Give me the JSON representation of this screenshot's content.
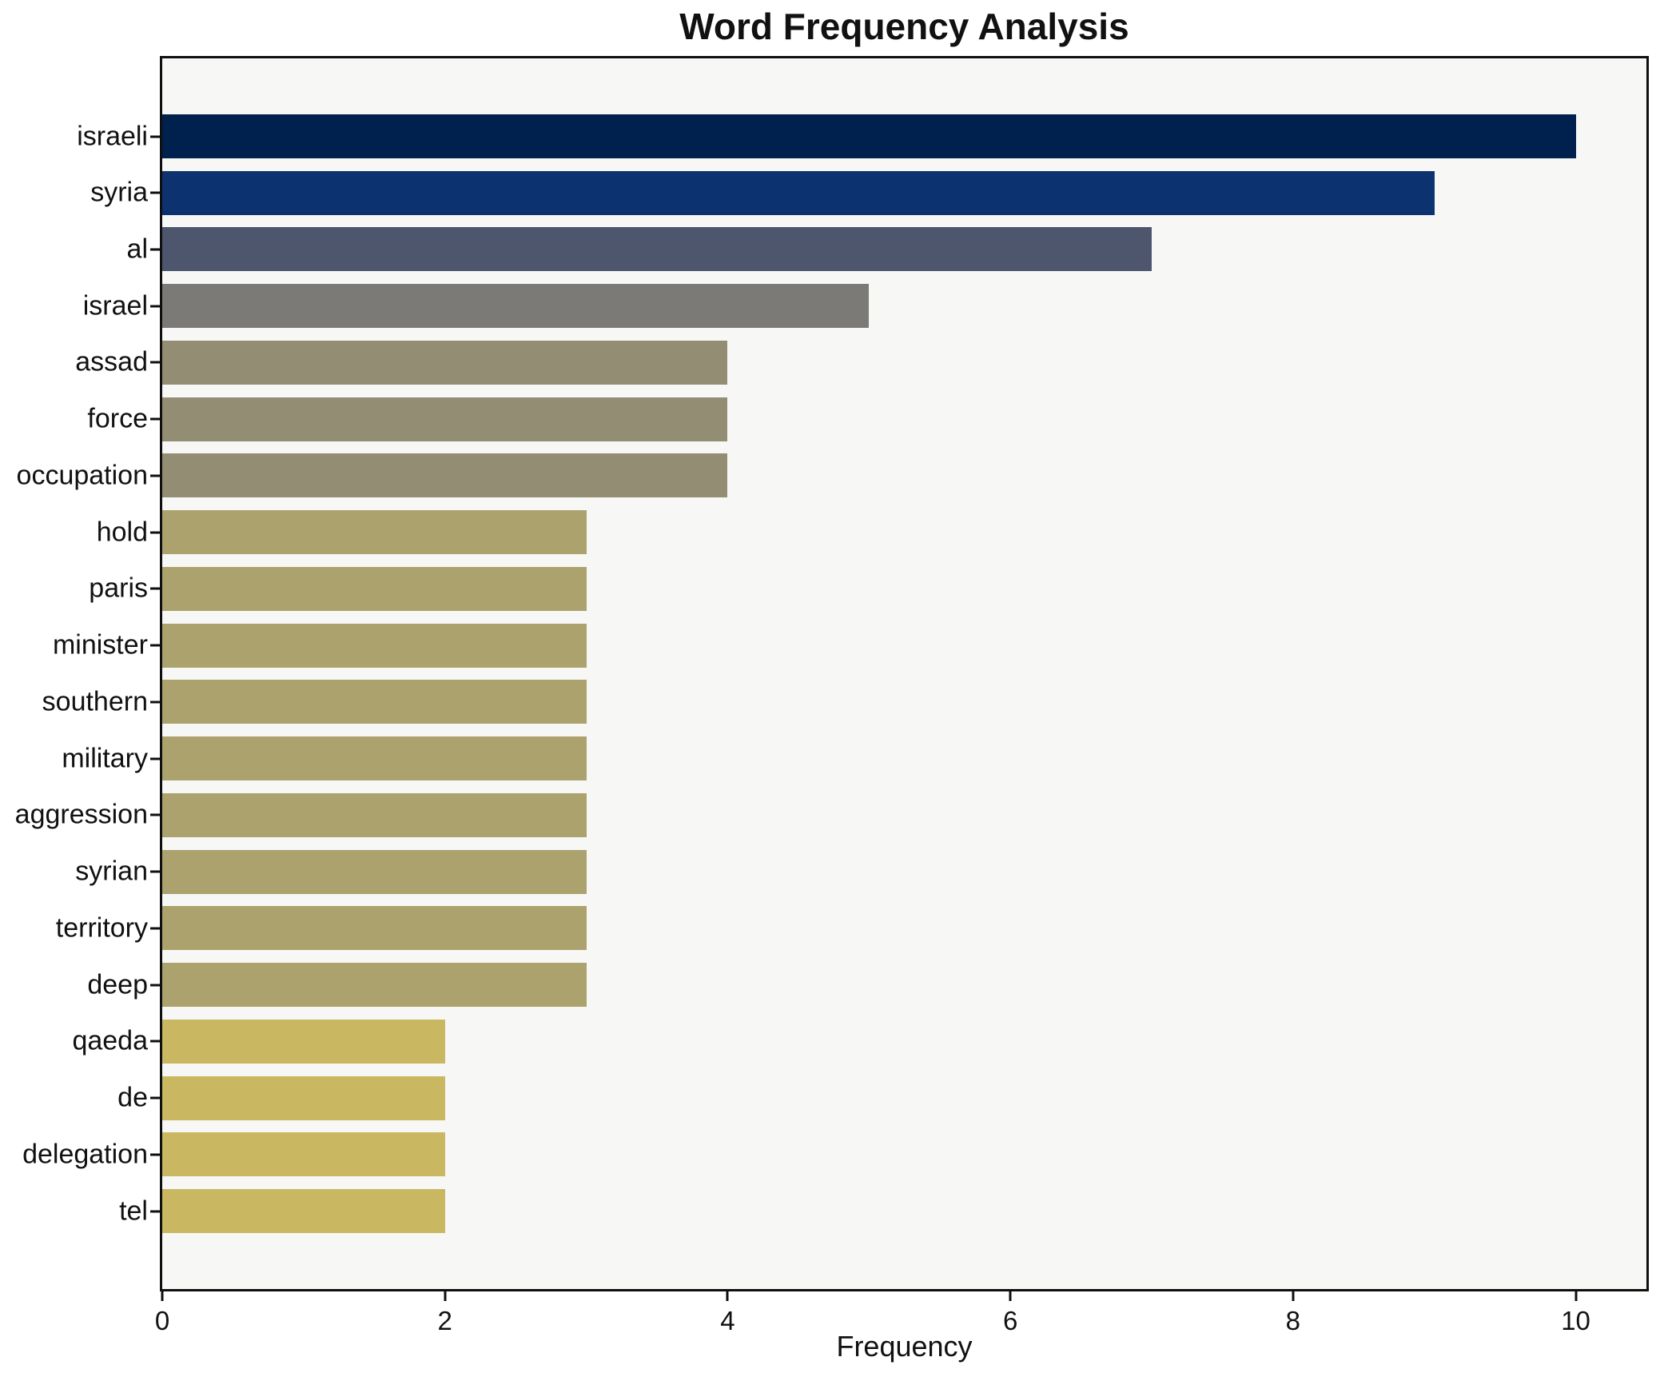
{
  "chart_data": {
    "type": "bar",
    "orientation": "horizontal",
    "title": "Word Frequency Analysis",
    "xlabel": "Frequency",
    "ylabel": "",
    "categories": [
      "israeli",
      "syria",
      "al",
      "israel",
      "assad",
      "force",
      "occupation",
      "hold",
      "paris",
      "minister",
      "southern",
      "military",
      "aggression",
      "syrian",
      "territory",
      "deep",
      "qaeda",
      "de",
      "delegation",
      "tel"
    ],
    "values": [
      10,
      9,
      7,
      5,
      4,
      4,
      4,
      3,
      3,
      3,
      3,
      3,
      3,
      3,
      3,
      3,
      2,
      2,
      2,
      2
    ],
    "bar_colors": [
      "#00214d",
      "#0d3270",
      "#4d566c",
      "#7b7a76",
      "#938d74",
      "#938d74",
      "#938d74",
      "#aca26e",
      "#aca26e",
      "#aca26e",
      "#aca26e",
      "#aca26e",
      "#aca26e",
      "#aca26e",
      "#aca26e",
      "#aca26e",
      "#c9b762",
      "#c9b762",
      "#c9b762",
      "#c9b762"
    ],
    "xlim": [
      0,
      10.5
    ],
    "xticks": [
      0,
      2,
      4,
      6,
      8,
      10
    ],
    "grid": false,
    "legend_position": "none",
    "plot_background": "#f7f7f6",
    "figure_background": "#ffffff",
    "spine_color": "#0f0f0f"
  }
}
